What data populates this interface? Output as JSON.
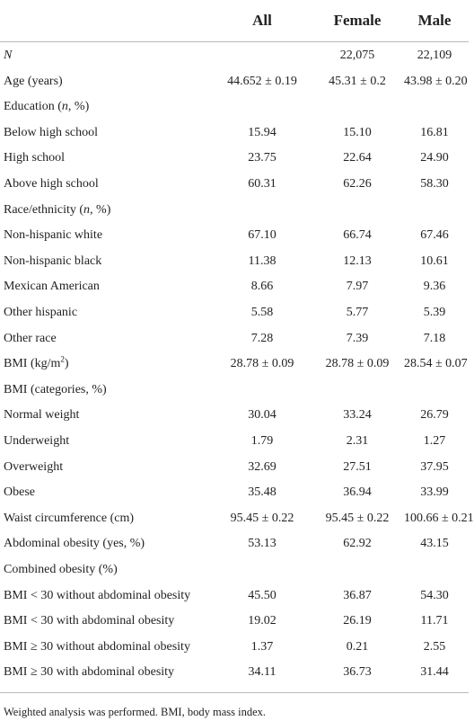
{
  "table": {
    "header": [
      "All",
      "Female",
      "Male"
    ],
    "rows": [
      {
        "label": [
          {
            "text": "N",
            "format": "italic"
          }
        ],
        "values": [
          null,
          "22,075",
          "22,109"
        ]
      },
      {
        "label": "Age (years)",
        "values": [
          "44.652 ± 0.19",
          "45.31 ± 0.2",
          "43.98 ± 0.20"
        ]
      },
      {
        "label": [
          {
            "text": "Education ("
          },
          {
            "text": "n",
            "format": "italic"
          },
          {
            "text": ", %)"
          }
        ]
      },
      {
        "label": "Below high school",
        "values": [
          "15.94",
          "15.10",
          "16.81"
        ]
      },
      {
        "label": "High school",
        "values": [
          "23.75",
          "22.64",
          "24.90"
        ]
      },
      {
        "label": "Above high school",
        "values": [
          "60.31",
          "62.26",
          "58.30"
        ]
      },
      {
        "label": [
          {
            "text": "Race/ethnicity ("
          },
          {
            "text": "n",
            "format": "italic"
          },
          {
            "text": ", %)"
          }
        ]
      },
      {
        "label": "Non-hispanic white",
        "values": [
          "67.10",
          "66.74",
          "67.46"
        ]
      },
      {
        "label": "Non-hispanic black",
        "values": [
          "11.38",
          "12.13",
          "10.61"
        ]
      },
      {
        "label": "Mexican American",
        "values": [
          "8.66",
          "7.97",
          "9.36"
        ]
      },
      {
        "label": "Other hispanic",
        "values": [
          "5.58",
          "5.77",
          "5.39"
        ]
      },
      {
        "label": "Other race",
        "values": [
          "7.28",
          "7.39",
          "7.18"
        ]
      },
      {
        "label": [
          {
            "text": "BMI (kg/m"
          },
          {
            "text": "2",
            "format": "superscript"
          },
          {
            "text": ")"
          }
        ],
        "values": [
          "28.78 ± 0.09",
          "28.78 ± 0.09",
          "28.54 ± 0.07"
        ]
      },
      {
        "label": "BMI (categories, %)"
      },
      {
        "label": "Normal weight",
        "values": [
          "30.04",
          "33.24",
          "26.79"
        ]
      },
      {
        "label": "Underweight",
        "values": [
          "1.79",
          "2.31",
          "1.27"
        ]
      },
      {
        "label": "Overweight",
        "values": [
          "32.69",
          "27.51",
          "37.95"
        ]
      },
      {
        "label": "Obese",
        "values": [
          "35.48",
          "36.94",
          "33.99"
        ]
      },
      {
        "label": "Waist circumference (cm)",
        "values": [
          "95.45 ± 0.22",
          "95.45 ± 0.22",
          "100.66 ± 0.21"
        ]
      },
      {
        "label": "Abdominal obesity (yes, %)",
        "values": [
          "53.13",
          "62.92",
          "43.15"
        ]
      },
      {
        "label": "Combined obesity (%)"
      },
      {
        "label": "BMI < 30 without abdominal obesity",
        "values": [
          "45.50",
          "36.87",
          "54.30"
        ]
      },
      {
        "label": "BMI < 30 with abdominal obesity",
        "values": [
          "19.02",
          "26.19",
          "11.71"
        ]
      },
      {
        "label": "BMI ≥ 30 without abdominal obesity",
        "values": [
          "1.37",
          "0.21",
          "2.55"
        ]
      },
      {
        "label": "BMI ≥ 30 with abdominal obesity",
        "values": [
          "34.11",
          "36.73",
          "31.44"
        ]
      }
    ],
    "footnote": "Weighted analysis was performed. BMI, body mass index."
  }
}
